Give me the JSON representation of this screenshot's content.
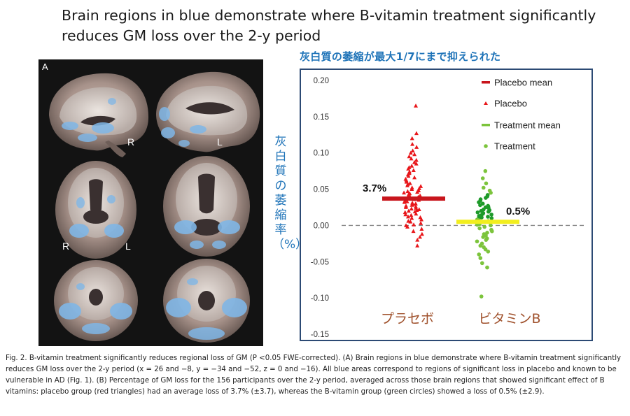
{
  "title": "Brain regions in blue demonstrate where B-vitamin   treatment significantly reduces GM loss over the 2-y period",
  "jp_subtitle": "灰白質の萎縮が最大1/7にまで抑えられた",
  "jp_ylabel": "灰白質の萎縮率（%）",
  "brain_panel": {
    "label": "A",
    "orient": [
      "R",
      "L",
      "R",
      "L"
    ]
  },
  "chart_data": {
    "type": "scatter",
    "title": "",
    "xlabel": "",
    "ylabel": "",
    "ylim": [
      -0.15,
      0.2
    ],
    "yticks": [
      "0.20",
      "0.15",
      "0.10",
      "0.05",
      "0.00",
      "-0.05",
      "-0.10",
      "-0.15"
    ],
    "categories": [
      "プラセボ",
      "ビタミンB"
    ],
    "legend": [
      "Placebo mean",
      "Placebo",
      "Treatment mean",
      "Treatment"
    ],
    "legend_position": "top-right",
    "colors": {
      "placebo": "#e8161a",
      "placebo_mean": "#c8151c",
      "treatment": "#7cc43c",
      "treatment_dark": "#1e9a2a",
      "treatment_mean": "#f2ee1e",
      "zero_line": "#888888",
      "category_label": "#a0522d"
    },
    "annotations": [
      "3.7%",
      "0.5%"
    ],
    "series": [
      {
        "name": "Placebo mean",
        "mean": 0.037
      },
      {
        "name": "Treatment mean",
        "mean": 0.005
      },
      {
        "name": "Placebo",
        "values": [
          0.165,
          0.127,
          0.12,
          0.112,
          0.108,
          0.103,
          0.1,
          0.098,
          0.095,
          0.092,
          0.09,
          0.087,
          0.085,
          0.082,
          0.08,
          0.078,
          0.076,
          0.074,
          0.072,
          0.07,
          0.068,
          0.066,
          0.064,
          0.062,
          0.06,
          0.058,
          0.057,
          0.055,
          0.054,
          0.052,
          0.051,
          0.05,
          0.048,
          0.047,
          0.046,
          0.045,
          0.044,
          0.043,
          0.042,
          0.041,
          0.04,
          0.039,
          0.038,
          0.037,
          0.036,
          0.035,
          0.034,
          0.033,
          0.032,
          0.031,
          0.03,
          0.029,
          0.028,
          0.027,
          0.026,
          0.025,
          0.024,
          0.023,
          0.022,
          0.021,
          0.02,
          0.019,
          0.018,
          0.016,
          0.015,
          0.014,
          0.012,
          0.011,
          0.01,
          0.008,
          0.006,
          0.005,
          0.003,
          0.001,
          0.0,
          -0.002,
          -0.005,
          -0.008,
          -0.012,
          -0.016,
          -0.02,
          -0.028
        ]
      },
      {
        "name": "Treatment",
        "values": [
          0.075,
          0.065,
          0.058,
          0.052,
          0.048,
          0.045,
          0.042,
          0.04,
          0.038,
          0.036,
          0.034,
          0.032,
          0.03,
          0.028,
          0.027,
          0.026,
          0.025,
          0.024,
          0.022,
          0.021,
          0.02,
          0.019,
          0.018,
          0.017,
          0.016,
          0.015,
          0.014,
          0.013,
          0.012,
          0.011,
          0.01,
          0.009,
          0.008,
          0.007,
          0.006,
          0.005,
          0.004,
          0.003,
          0.002,
          0.001,
          0.0,
          -0.002,
          -0.004,
          -0.006,
          -0.008,
          -0.01,
          -0.012,
          -0.014,
          -0.016,
          -0.018,
          -0.02,
          -0.022,
          -0.025,
          -0.028,
          -0.03,
          -0.033,
          -0.036,
          -0.04,
          -0.045,
          -0.052,
          -0.058,
          -0.098
        ]
      }
    ]
  },
  "caption": "Fig. 2. B-vitamin treatment  significantly reduces regional loss of GM (P <0.05 FWE-corrected).  (A) Brain regions in blue demonstrate  where  B-vitamin  treatment significantly reduces GM loss over the  2-y period (x = 26 and −8,    y = −34 and −52, z = 0 and −16). All blue areas correspond to regions of    significant loss in placebo and known to be vulnerable in AD (Fig. 1).  (B)   Percentage of GM loss for the 156 participants over the 2-y period, averaged    across those brain regions that showed significant effect of B vitamins:  placebo group (red triangles) had an average loss of 3.7% (±3.7), whereas   the  B-vitamin group (green circles) showed a loss of 0.5% (±2.9)."
}
